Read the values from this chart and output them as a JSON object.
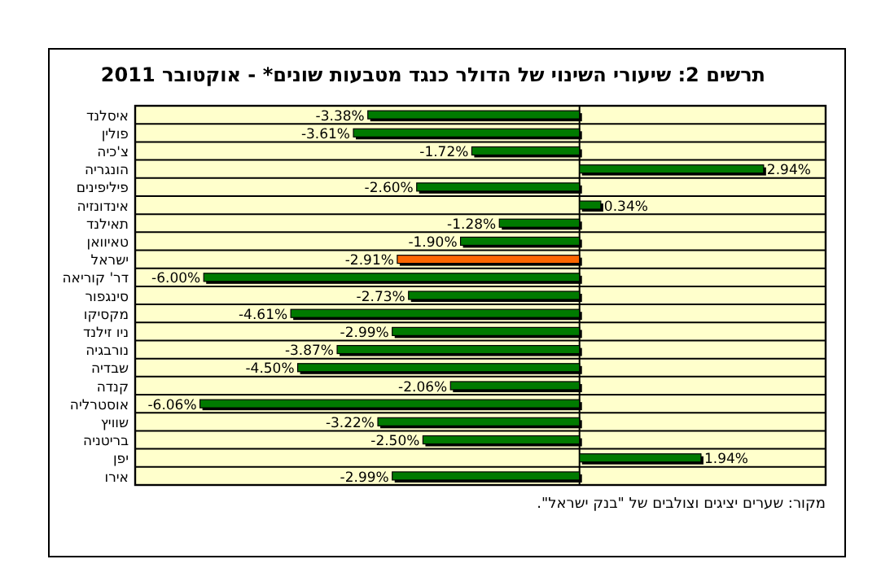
{
  "chart_data": {
    "type": "bar",
    "orientation": "horizontal",
    "title": "תרשים 2: שיעורי השינוי של הדולר כנגד מטבעות שונים* - אוקטובר 2011",
    "categories": [
      "איסלנד",
      "פולין",
      "צ'כיה",
      "הונגריה",
      "פיליפינים",
      "אינדונזיה",
      "תאילנד",
      "טאיוואן",
      "ישראל",
      "דר' קוריאה",
      "סינגפור",
      "מקסיקו",
      "ניו זילנד",
      "נורבגיה",
      "שבדיה",
      "קנדה",
      "אוסטרליה",
      "שוויץ",
      "בריטניה",
      "יפן",
      "אירו"
    ],
    "values": [
      -3.38,
      -3.61,
      -1.72,
      2.94,
      -2.6,
      0.34,
      -1.28,
      -1.9,
      -2.91,
      -6.0,
      -2.73,
      -4.61,
      -2.99,
      -3.87,
      -4.5,
      -2.06,
      -6.06,
      -3.22,
      -2.5,
      1.94,
      -2.99
    ],
    "value_labels": [
      "-3.38%",
      "-3.61%",
      "-1.72%",
      "2.94%",
      "-2.60%",
      "0.34%",
      "-1.28%",
      "-1.90%",
      "-2.91%",
      "-6.00%",
      "-2.73%",
      "-4.61%",
      "-2.99%",
      "-3.87%",
      "-4.50%",
      "-2.06%",
      "-6.06%",
      "-3.22%",
      "-2.50%",
      "1.94%",
      "-2.99%"
    ],
    "colors": [
      "#007a00",
      "#007a00",
      "#007a00",
      "#007a00",
      "#007a00",
      "#007a00",
      "#007a00",
      "#007a00",
      "#ff6600",
      "#007a00",
      "#007a00",
      "#007a00",
      "#007a00",
      "#007a00",
      "#007a00",
      "#007a00",
      "#007a00",
      "#007a00",
      "#007a00",
      "#007a00",
      "#007a00"
    ],
    "grid": "y",
    "annotations": [
      "מקור: שערים יציגים וצולבים של \"בנק ישראל\"."
    ]
  }
}
